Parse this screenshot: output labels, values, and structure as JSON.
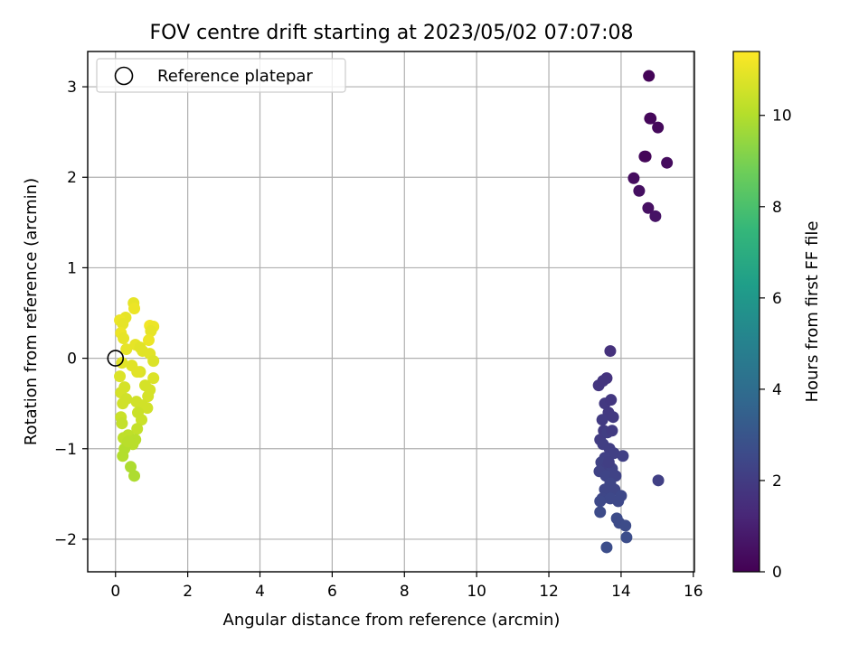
{
  "chart_data": {
    "type": "scatter",
    "title": "FOV centre drift starting at 2023/05/02 07:07:08",
    "xlabel": "Angular distance from reference (arcmin)",
    "ylabel": "Rotation from reference (arcmin)",
    "xlim": [
      -0.77,
      16.03
    ],
    "ylim": [
      -2.36,
      3.39
    ],
    "xticks": [
      0,
      2,
      4,
      6,
      8,
      10,
      12,
      14,
      16
    ],
    "yticks": [
      -2,
      -1,
      0,
      1,
      2,
      3
    ],
    "xtick_labels": [
      "0",
      "2",
      "4",
      "6",
      "8",
      "10",
      "12",
      "14",
      "16"
    ],
    "ytick_labels": [
      "−2",
      "−1",
      "0",
      "1",
      "2",
      "3"
    ],
    "grid": true,
    "legend": {
      "placement": "upper-left",
      "entries": [
        "Reference platepar"
      ]
    },
    "reference_point": {
      "x": 0,
      "y": 0,
      "marker": "open-circle"
    },
    "colorbar": {
      "label": "Hours from first FF file",
      "range": [
        0,
        11.4
      ],
      "ticks": [
        0,
        2,
        4,
        6,
        8,
        10
      ],
      "tick_labels": [
        "0",
        "2",
        "4",
        "6",
        "8",
        "10"
      ],
      "colormap": "viridis",
      "colors": [
        "#440154",
        "#482878",
        "#3e4989",
        "#31688e",
        "#26828e",
        "#1f9e89",
        "#35b779",
        "#6ece58",
        "#b5de2b",
        "#fde725"
      ]
    },
    "series": [
      {
        "color_by": "hours",
        "points": [
          [
            14.77,
            3.12,
            0.1
          ],
          [
            14.8,
            2.65,
            0.2
          ],
          [
            15.02,
            2.55,
            0.25
          ],
          [
            14.65,
            2.23,
            0.3
          ],
          [
            15.27,
            2.16,
            0.35
          ],
          [
            14.35,
            1.99,
            0.4
          ],
          [
            14.5,
            1.85,
            0.45
          ],
          [
            14.75,
            1.66,
            0.5
          ],
          [
            14.95,
            1.57,
            0.6
          ],
          [
            14.68,
            2.23,
            0.15
          ],
          [
            14.82,
            2.65,
            0.2
          ],
          [
            13.7,
            0.08,
            1.6
          ],
          [
            13.6,
            -0.22,
            1.7
          ],
          [
            13.38,
            -0.3,
            1.8
          ],
          [
            13.5,
            -0.25,
            1.75
          ],
          [
            13.55,
            -0.5,
            1.9
          ],
          [
            13.72,
            -0.46,
            1.85
          ],
          [
            13.65,
            -0.6,
            1.9
          ],
          [
            13.48,
            -0.68,
            2.0
          ],
          [
            13.78,
            -0.65,
            1.95
          ],
          [
            13.52,
            -0.8,
            2.0
          ],
          [
            13.42,
            -0.9,
            2.05
          ],
          [
            13.62,
            -0.82,
            2.1
          ],
          [
            13.75,
            -0.8,
            2.0
          ],
          [
            13.5,
            -0.95,
            2.1
          ],
          [
            13.68,
            -1.0,
            2.1
          ],
          [
            13.8,
            -1.05,
            2.15
          ],
          [
            13.55,
            -1.1,
            2.2
          ],
          [
            14.05,
            -1.08,
            2.2
          ],
          [
            13.45,
            -1.15,
            2.25
          ],
          [
            13.62,
            -1.2,
            2.2
          ],
          [
            13.75,
            -1.22,
            2.3
          ],
          [
            13.4,
            -1.25,
            2.3
          ],
          [
            13.58,
            -1.3,
            2.35
          ],
          [
            13.85,
            -1.3,
            2.3
          ],
          [
            13.7,
            -1.38,
            2.4
          ],
          [
            15.03,
            -1.35,
            2.2
          ],
          [
            13.55,
            -1.45,
            2.4
          ],
          [
            13.82,
            -1.45,
            2.4
          ],
          [
            13.48,
            -1.55,
            2.45
          ],
          [
            13.7,
            -1.55,
            2.5
          ],
          [
            14.0,
            -1.52,
            2.5
          ],
          [
            13.92,
            -1.58,
            2.5
          ],
          [
            13.42,
            -1.58,
            2.55
          ],
          [
            13.42,
            -1.7,
            2.6
          ],
          [
            13.88,
            -1.77,
            2.6
          ],
          [
            13.95,
            -1.82,
            2.6
          ],
          [
            14.12,
            -1.85,
            2.65
          ],
          [
            14.15,
            -1.98,
            2.7
          ],
          [
            13.6,
            -2.09,
            2.7
          ],
          [
            13.66,
            -1.15,
            2.15
          ],
          [
            0.5,
            0.61,
            11.0
          ],
          [
            0.52,
            0.55,
            11.1
          ],
          [
            0.28,
            0.45,
            11.0
          ],
          [
            0.12,
            0.42,
            11.1
          ],
          [
            0.2,
            0.38,
            11.0
          ],
          [
            0.95,
            0.36,
            11.2
          ],
          [
            1.05,
            0.35,
            11.1
          ],
          [
            0.98,
            0.3,
            11.0
          ],
          [
            0.15,
            0.28,
            11.1
          ],
          [
            0.22,
            0.22,
            11.0
          ],
          [
            0.92,
            0.2,
            11.1
          ],
          [
            0.55,
            0.15,
            11.0
          ],
          [
            0.68,
            0.12,
            10.9
          ],
          [
            0.3,
            0.1,
            11.0
          ],
          [
            0.75,
            0.08,
            10.9
          ],
          [
            0.95,
            0.05,
            10.9
          ],
          [
            1.05,
            -0.03,
            10.8
          ],
          [
            0.18,
            -0.05,
            10.9
          ],
          [
            0.45,
            -0.08,
            10.9
          ],
          [
            0.68,
            -0.15,
            10.8
          ],
          [
            0.12,
            -0.2,
            10.8
          ],
          [
            1.05,
            -0.22,
            10.8
          ],
          [
            0.82,
            -0.3,
            10.7
          ],
          [
            0.25,
            -0.32,
            10.7
          ],
          [
            0.95,
            -0.35,
            10.7
          ],
          [
            0.15,
            -0.38,
            10.7
          ],
          [
            0.9,
            -0.42,
            10.7
          ],
          [
            0.3,
            -0.45,
            10.6
          ],
          [
            0.58,
            -0.48,
            10.6
          ],
          [
            0.75,
            -0.52,
            10.6
          ],
          [
            0.2,
            -0.5,
            10.6
          ],
          [
            0.88,
            -0.55,
            10.6
          ],
          [
            0.62,
            -0.6,
            10.5
          ],
          [
            0.15,
            -0.65,
            10.5
          ],
          [
            0.72,
            -0.68,
            10.5
          ],
          [
            0.18,
            -0.72,
            10.4
          ],
          [
            0.6,
            -0.78,
            10.4
          ],
          [
            0.35,
            -0.85,
            10.3
          ],
          [
            0.22,
            -0.88,
            10.3
          ],
          [
            0.55,
            -0.9,
            10.2
          ],
          [
            0.48,
            -0.95,
            10.2
          ],
          [
            0.25,
            -1.0,
            10.1
          ],
          [
            0.2,
            -1.08,
            10.1
          ],
          [
            0.42,
            -1.2,
            10.0
          ],
          [
            0.52,
            -1.3,
            10.0
          ],
          [
            0.35,
            -0.92,
            10.2
          ],
          [
            0.6,
            -0.15,
            10.9
          ]
        ]
      }
    ]
  }
}
